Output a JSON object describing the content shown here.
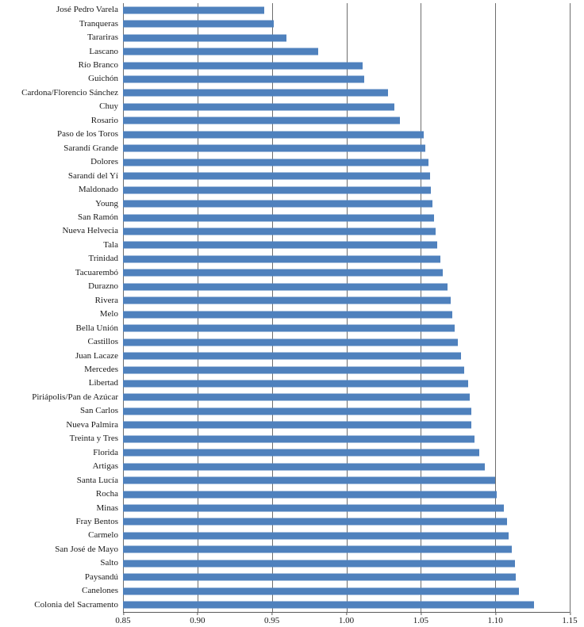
{
  "chart_data": {
    "type": "bar",
    "orientation": "horizontal",
    "title": "",
    "xlabel": "",
    "ylabel": "",
    "grid": true,
    "bar_color": "#4f81bd",
    "gridline_color": "#6e6e6e",
    "xlim": [
      0.85,
      1.15
    ],
    "xticks": [
      0.85,
      0.9,
      0.95,
      1.0,
      1.05,
      1.1,
      1.15
    ],
    "xtick_labels": [
      "0.85",
      "0.90",
      "0.95",
      "1.00",
      "1.05",
      "1.10",
      "1.15"
    ],
    "categories": [
      "José Pedro Varela",
      "Tranqueras",
      "Tarariras",
      "Lascano",
      "Río Branco",
      "Guichón",
      "Cardona/Florencio Sánchez",
      "Chuy",
      "Rosario",
      "Paso de los Toros",
      "Sarandí Grande",
      "Dolores",
      "Sarandí del Yí",
      "Maldonado",
      "Young",
      "San Ramón",
      "Nueva Helvecia",
      "Tala",
      "Trinidad",
      "Tacuarembó",
      "Durazno",
      "Rivera",
      "Melo",
      "Bella Unión",
      "Castillos",
      "Juan Lacaze",
      "Mercedes",
      "Libertad",
      "Piriápolis/Pan de Azúcar",
      "San Carlos",
      "Nueva Palmira",
      "Treinta y Tres",
      "Florida",
      "Artigas",
      "Santa Lucía",
      "Rocha",
      "Minas",
      "Fray Bentos",
      "Carmelo",
      "San José de Mayo",
      "Salto",
      "Paysandú",
      "Canelones",
      "Colonia del Sacramento"
    ],
    "values": [
      0.945,
      0.951,
      0.96,
      0.981,
      1.011,
      1.012,
      1.028,
      1.032,
      1.036,
      1.052,
      1.053,
      1.055,
      1.056,
      1.057,
      1.058,
      1.059,
      1.06,
      1.061,
      1.063,
      1.065,
      1.068,
      1.07,
      1.071,
      1.073,
      1.075,
      1.077,
      1.079,
      1.082,
      1.083,
      1.084,
      1.084,
      1.086,
      1.089,
      1.093,
      1.1,
      1.101,
      1.106,
      1.108,
      1.109,
      1.111,
      1.113,
      1.114,
      1.116,
      1.126
    ]
  }
}
